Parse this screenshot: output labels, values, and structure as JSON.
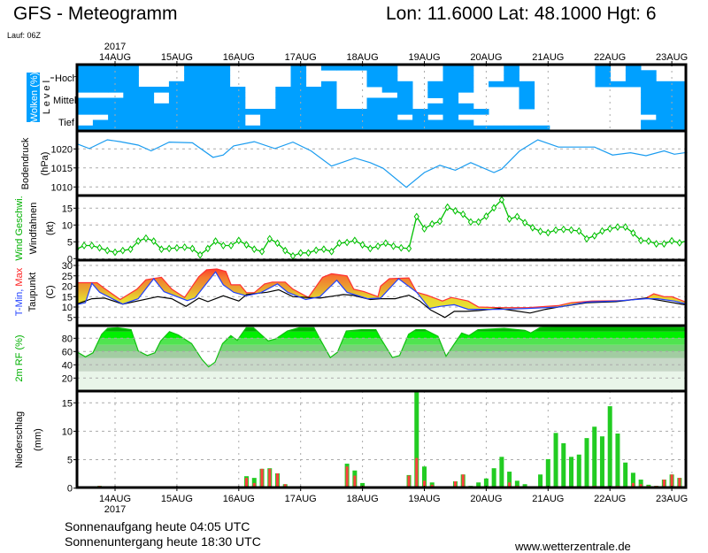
{
  "header": {
    "title": "GFS - Meteogramm",
    "location": "Lon: 11.6000 Lat: 48.1000 Hgt: 6",
    "run": "Lauf: 06Z"
  },
  "footer": {
    "sunrise": "Sonnenaufgang heute 04:05 UTC",
    "sunset": "Sonnenuntergang heute 18:30 UTC",
    "site": "www.wetterzentrale.de"
  },
  "axis_labels": {
    "clouds": "Wolken (%)",
    "level": "L e v e l",
    "level_high": "Hoch",
    "level_mid": "Mittel",
    "level_low": "Tief",
    "pressure": "Bodendruck",
    "pressure_unit": "(hPa)",
    "wind": "Wind Geschwi.",
    "wind_barbs": "Windfahnen",
    "wind_unit": "(kt)",
    "tmin": "T-Min,",
    "tmax": " Max",
    "dewpoint": "Taupunkt",
    "temp_unit": "(C)",
    "rh": "2m RF (%)",
    "precip": "Niederschlag",
    "precip_unit": "(mm)"
  },
  "colors": {
    "cloud": "#00a0ff",
    "pressure": "#1a9cf0",
    "wind": "#00c000",
    "tmin": "#2040ff",
    "tmax": "#ff3030",
    "dewpoint": "#000000",
    "precip_total": "#22cc22",
    "precip_conv": "#ff4040"
  },
  "chart_data": {
    "type": "meteogram",
    "time_axis": {
      "unit": "hours since 14AUG 00Z",
      "range": [
        -15,
        222
      ],
      "year": "2017",
      "dates": [
        "14AUG",
        "15AUG",
        "16AUG",
        "17AUG",
        "18AUG",
        "19AUG",
        "20AUG",
        "21AUG",
        "22AUG",
        "23AUG"
      ]
    },
    "clouds": {
      "start_hour": -15,
      "step_hours": 6,
      "levels_top_to_bottom": 12,
      "grid": [
        "1111000111000010111110001100100000101000",
        "1111000111000010000110001100100000101100",
        "1111000111000010000110001100100000101100",
        "1111001111000010100111011101110000111111",
        "1111111111100111100011011100010000000111",
        "0001101111100111100001011000010000000111",
        "1111101111100111100111001000010000000111",
        "1111111111100111100111011100010000000111",
        "1111111111111111111111111110000000000111",
        "0011111111101111111110101000000000000011",
        "0111111111101111111111111100000000000111",
        "1111111111111111111111111111111000000111"
      ]
    },
    "pressure": {
      "ylim": [
        1007,
        1024
      ],
      "ticks": [
        1020,
        1015,
        1010
      ],
      "points": [
        [
          -15,
          1021.4
        ],
        [
          -10,
          1020.1
        ],
        [
          -3,
          1022.4
        ],
        [
          2,
          1021.9
        ],
        [
          9,
          1021
        ],
        [
          14,
          1019.5
        ],
        [
          21,
          1021.8
        ],
        [
          30,
          1021.6
        ],
        [
          38,
          1017.8
        ],
        [
          42,
          1018.4
        ],
        [
          46,
          1020.8
        ],
        [
          54,
          1021.9
        ],
        [
          62,
          1020.1
        ],
        [
          69,
          1021.8
        ],
        [
          76,
          1019.5
        ],
        [
          84,
          1015.5
        ],
        [
          93,
          1017.6
        ],
        [
          99,
          1016.4
        ],
        [
          104,
          1014.9
        ],
        [
          113,
          1009.9
        ],
        [
          120,
          1013.8
        ],
        [
          126,
          1015.7
        ],
        [
          132,
          1014.4
        ],
        [
          138,
          1016.4
        ],
        [
          147,
          1013.8
        ],
        [
          150,
          1014.7
        ],
        [
          157,
          1019.5
        ],
        [
          164,
          1022.4
        ],
        [
          172,
          1020.5
        ],
        [
          186,
          1020.5
        ],
        [
          193,
          1018.4
        ],
        [
          200,
          1019
        ],
        [
          206,
          1018.2
        ],
        [
          213,
          1019.5
        ],
        [
          217,
          1018.6
        ],
        [
          222,
          1019.1
        ]
      ]
    },
    "wind": {
      "ylim": [
        0,
        19
      ],
      "ticks": [
        15,
        10,
        5,
        0
      ],
      "start_hour": -15,
      "step_hours": 3,
      "values": [
        2.8,
        3.9,
        3.9,
        3.2,
        2.4,
        1.9,
        2.4,
        2.8,
        5.2,
        6.1,
        5.2,
        2.8,
        3.0,
        3.2,
        3.4,
        3.0,
        1.1,
        3.0,
        5.2,
        3.9,
        3.9,
        5.4,
        4.1,
        2.8,
        2.1,
        5.9,
        4.6,
        2.4,
        0.8,
        1.7,
        1.7,
        2.5,
        2.8,
        2.1,
        4.6,
        4.8,
        5.4,
        4.1,
        3.0,
        3.7,
        4.6,
        3.7,
        3.2,
        3.0,
        12.5,
        8.9,
        10.3,
        11.1,
        15.3,
        14.2,
        13.2,
        10.9,
        10.9,
        12.6,
        15.1,
        17.5,
        11.8,
        12.5,
        10.7,
        9.2,
        8.1,
        7.7,
        8.5,
        8.7,
        8.5,
        8.2,
        5.9,
        6.8,
        8.2,
        8.9,
        9.4,
        9.4,
        7.6,
        5.4,
        5.2,
        4.4,
        4.4,
        5.3,
        4.7,
        5.3
      ]
    },
    "temperature": {
      "ylim": [
        2,
        31
      ],
      "ticks": [
        30,
        25,
        20,
        15,
        10,
        5
      ],
      "tmax": [
        [
          -15,
          21.7
        ],
        [
          -7,
          21.7
        ],
        [
          -4,
          18.9
        ],
        [
          2,
          13.6
        ],
        [
          8.5,
          18.6
        ],
        [
          12,
          23.1
        ],
        [
          18,
          24.3
        ],
        [
          22,
          18.6
        ],
        [
          27,
          14.6
        ],
        [
          32.5,
          24.6
        ],
        [
          35.5,
          27.9
        ],
        [
          39.5,
          28.3
        ],
        [
          43,
          27.1
        ],
        [
          45,
          20.7
        ],
        [
          48.5,
          20.7
        ],
        [
          51,
          16.9
        ],
        [
          54,
          16.9
        ],
        [
          58,
          21.1
        ],
        [
          61,
          22
        ],
        [
          66,
          22
        ],
        [
          69,
          18.6
        ],
        [
          75,
          14.6
        ],
        [
          80.5,
          24.3
        ],
        [
          84,
          26
        ],
        [
          90,
          25
        ],
        [
          92.6,
          18.6
        ],
        [
          96.6,
          17.4
        ],
        [
          102,
          15
        ],
        [
          103,
          20
        ],
        [
          106.4,
          23.6
        ],
        [
          114,
          24
        ],
        [
          117,
          17.1
        ],
        [
          121,
          15.7
        ],
        [
          127,
          12.9
        ],
        [
          130.5,
          14.6
        ],
        [
          137,
          12.9
        ],
        [
          141,
          10
        ],
        [
          149,
          9.7
        ],
        [
          160,
          9.7
        ],
        [
          172,
          10.7
        ],
        [
          177,
          12.1
        ],
        [
          185,
          12.9
        ],
        [
          197,
          13.1
        ],
        [
          206,
          14.3
        ],
        [
          209,
          16.4
        ],
        [
          213,
          15
        ],
        [
          216,
          15
        ],
        [
          221,
          12.6
        ]
      ],
      "tmin": [
        [
          -15,
          11.1
        ],
        [
          -11.5,
          12.1
        ],
        [
          -9,
          21.4
        ],
        [
          -6,
          17.1
        ],
        [
          3,
          11.4
        ],
        [
          9,
          14
        ],
        [
          15,
          23.6
        ],
        [
          19,
          17.4
        ],
        [
          28,
          13.1
        ],
        [
          31,
          14.3
        ],
        [
          39,
          26.9
        ],
        [
          42,
          20.7
        ],
        [
          46,
          17.1
        ],
        [
          51,
          15.4
        ],
        [
          56.5,
          16.9
        ],
        [
          63,
          21.1
        ],
        [
          67,
          17.1
        ],
        [
          74,
          13.6
        ],
        [
          79.5,
          15
        ],
        [
          86,
          22.9
        ],
        [
          90,
          17.1
        ],
        [
          98,
          14
        ],
        [
          103,
          14.3
        ],
        [
          110,
          23.6
        ],
        [
          117,
          17.1
        ],
        [
          122,
          9.3
        ],
        [
          126,
          10.3
        ],
        [
          131.6,
          11.1
        ],
        [
          137,
          8.9
        ],
        [
          149,
          8.9
        ],
        [
          160,
          9.3
        ],
        [
          172,
          10
        ],
        [
          183,
          12.4
        ],
        [
          194.5,
          12.9
        ],
        [
          206,
          14
        ],
        [
          210.5,
          14
        ],
        [
          217,
          12.9
        ],
        [
          221,
          11.7
        ]
      ],
      "dewpoint": [
        [
          -15,
          11.4
        ],
        [
          -9,
          14
        ],
        [
          -4,
          14.3
        ],
        [
          3,
          11.4
        ],
        [
          16.5,
          15
        ],
        [
          22,
          14
        ],
        [
          27.5,
          10.3
        ],
        [
          32.5,
          14.3
        ],
        [
          36,
          12.6
        ],
        [
          42,
          15.4
        ],
        [
          48,
          12.9
        ],
        [
          51,
          16
        ],
        [
          59,
          17.1
        ],
        [
          63.5,
          18.3
        ],
        [
          69,
          15
        ],
        [
          79.5,
          14.3
        ],
        [
          88.6,
          16
        ],
        [
          92,
          15.7
        ],
        [
          99,
          13.6
        ],
        [
          103,
          14
        ],
        [
          108.7,
          14
        ],
        [
          114,
          15.7
        ],
        [
          118,
          13.1
        ],
        [
          122.4,
          8.6
        ],
        [
          128,
          5
        ],
        [
          131.6,
          7.9
        ],
        [
          136,
          7.9
        ],
        [
          141,
          8.3
        ],
        [
          149,
          9.3
        ],
        [
          154.5,
          8.3
        ],
        [
          161,
          7.1
        ],
        [
          167,
          8.9
        ],
        [
          172,
          10
        ],
        [
          183,
          12.1
        ],
        [
          194.5,
          12.6
        ],
        [
          206,
          14.3
        ],
        [
          211.7,
          13.1
        ],
        [
          221,
          11.1
        ]
      ]
    },
    "relative_humidity": {
      "ylim": [
        0,
        99
      ],
      "ticks": [
        80,
        60,
        40,
        20
      ],
      "bands": [
        0,
        30,
        50,
        60,
        70,
        80,
        90,
        100
      ],
      "band_colors": [
        "#e9f5e9",
        "#c8d8c8",
        "#a2cca2",
        "#78d278",
        "#50e450",
        "#00f000",
        "#00b400"
      ],
      "points": [
        [
          -15,
          60
        ],
        [
          -11.5,
          52
        ],
        [
          -8.6,
          58
        ],
        [
          -5.2,
          86
        ],
        [
          -2.9,
          95
        ],
        [
          1,
          96
        ],
        [
          6.2,
          93
        ],
        [
          9,
          61
        ],
        [
          12.5,
          54
        ],
        [
          15.4,
          58
        ],
        [
          17.7,
          76
        ],
        [
          21.1,
          90
        ],
        [
          24.5,
          85
        ],
        [
          29.7,
          72
        ],
        [
          33.7,
          48
        ],
        [
          36.3,
          37
        ],
        [
          38.8,
          44
        ],
        [
          41.7,
          72
        ],
        [
          44.9,
          84
        ],
        [
          47.4,
          77
        ],
        [
          50.9,
          96
        ],
        [
          53.7,
          96
        ],
        [
          59.4,
          76
        ],
        [
          62.3,
          79
        ],
        [
          66.9,
          91
        ],
        [
          71.4,
          96
        ],
        [
          77.2,
          96
        ],
        [
          79.5,
          79
        ],
        [
          83.5,
          51
        ],
        [
          86.3,
          59
        ],
        [
          89.7,
          91
        ],
        [
          95.5,
          93
        ],
        [
          101.2,
          93
        ],
        [
          103,
          80
        ],
        [
          107.6,
          51
        ],
        [
          110.4,
          54
        ],
        [
          113.9,
          86
        ],
        [
          116.7,
          93
        ],
        [
          120.2,
          93
        ],
        [
          125.3,
          83
        ],
        [
          128.4,
          53
        ],
        [
          134.5,
          88
        ],
        [
          137.3,
          84
        ],
        [
          140.8,
          93
        ],
        [
          151,
          95
        ],
        [
          159,
          92
        ],
        [
          161.3,
          88
        ],
        [
          164.8,
          96
        ],
        [
          171.6,
          98
        ],
        [
          206,
          98
        ],
        [
          221.4,
          96
        ]
      ]
    },
    "precipitation": {
      "ylim": [
        0,
        16
      ],
      "ticks": [
        15,
        10,
        5,
        0
      ],
      "start_hour": -15,
      "step_hours": 3,
      "total": [
        0,
        0,
        0,
        0.4,
        0,
        0,
        0,
        0,
        0,
        0,
        0,
        0,
        0,
        0,
        0,
        0,
        0,
        0,
        0,
        0,
        0,
        0,
        2.1,
        1.8,
        3.4,
        3.5,
        2.6,
        0.7,
        0,
        0,
        0,
        0,
        0,
        0,
        0.25,
        4.3,
        3.1,
        0.9,
        0.1,
        0.1,
        0,
        0,
        0,
        2.3,
        17.5,
        3.8,
        1.0,
        0,
        0,
        1.2,
        2.4,
        0.4,
        1.0,
        1.7,
        3.5,
        5.5,
        2.9,
        1.3,
        0.7,
        0,
        2.4,
        5.1,
        9.7,
        7.9,
        5.5,
        5.9,
        8.8,
        10.8,
        9.1,
        14.4,
        9.6,
        4.5,
        2.7,
        1.5,
        0.6,
        0.4,
        1.5,
        2.4,
        1.8,
        4.8
      ],
      "convective": [
        0,
        0,
        0,
        0.4,
        0,
        0,
        0,
        0,
        0,
        0,
        0,
        0,
        0,
        0,
        0,
        0,
        0,
        0,
        0,
        0,
        0,
        0,
        1.8,
        0.9,
        3.4,
        3.4,
        2.6,
        0.7,
        0,
        0,
        0,
        0,
        0,
        0,
        0.25,
        3.8,
        2.2,
        0.4,
        0.1,
        0.1,
        0,
        0,
        0,
        2.2,
        5.3,
        1.3,
        0.6,
        0,
        0,
        1.2,
        2.4,
        0.25,
        0,
        0.25,
        0,
        0.25,
        1.0,
        0.4,
        0,
        0,
        0,
        0.25,
        0,
        0,
        0.25,
        0,
        0.25,
        0.4,
        0,
        0,
        0.4,
        0.25,
        0.9,
        0.7,
        0.4,
        0.4,
        1.5,
        2.4,
        1.8,
        4.8
      ]
    }
  }
}
